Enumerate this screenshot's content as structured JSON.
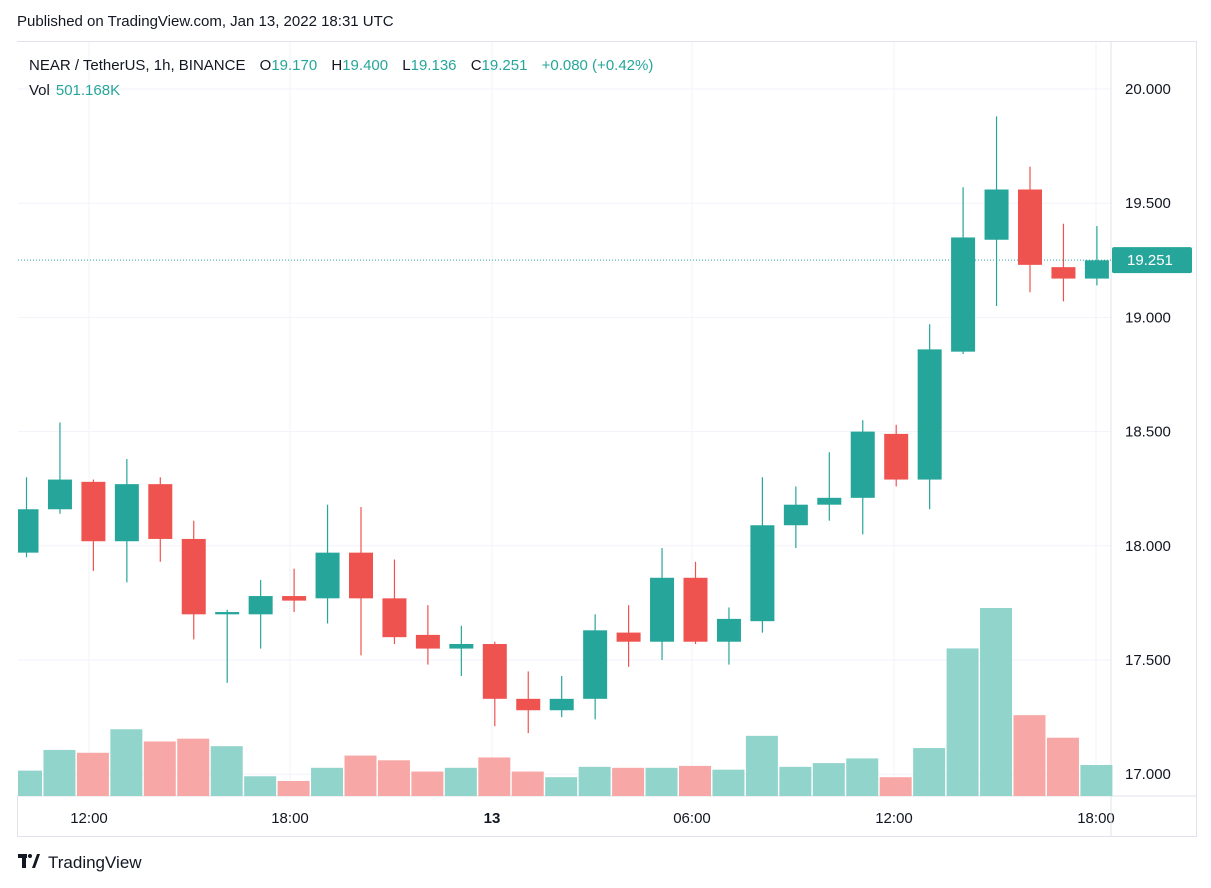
{
  "header": {
    "published": "Published on TradingView.com, Jan 13, 2022 18:31 UTC"
  },
  "legend": {
    "symbol": "NEAR / TetherUS, 1h, BINANCE",
    "open_label": "O",
    "open": "19.170",
    "high_label": "H",
    "high": "19.400",
    "low_label": "L",
    "low": "19.136",
    "close_label": "C",
    "close": "19.251",
    "change": "+0.080 (+0.42%)",
    "vol_label": "Vol",
    "vol": "501.168K"
  },
  "price_tag": "19.251",
  "footer": {
    "brand": "TradingView",
    "logo_icon": "tradingview-logo-icon"
  },
  "colors": {
    "up": "#26a69a",
    "down": "#ef5350",
    "up_vol": "#91d4cc",
    "down_vol": "#f7a8a6"
  },
  "chart_data": {
    "type": "candlestick",
    "y_axis": {
      "ticks": [
        "20.000",
        "19.500",
        "19.000",
        "18.500",
        "18.000",
        "17.500",
        "17.000"
      ],
      "range": [
        16.9,
        20.2
      ]
    },
    "x_axis": {
      "ticks": [
        "12:00",
        "18:00",
        "13",
        "06:00",
        "12:00",
        "18:00"
      ]
    },
    "last_price": 19.251,
    "candles": [
      {
        "o": 17.97,
        "h": 18.3,
        "l": 17.95,
        "c": 18.16
      },
      {
        "o": 18.16,
        "h": 18.54,
        "l": 18.14,
        "c": 18.29
      },
      {
        "o": 18.28,
        "h": 18.29,
        "l": 17.89,
        "c": 18.02
      },
      {
        "o": 18.02,
        "h": 18.38,
        "l": 17.84,
        "c": 18.27
      },
      {
        "o": 18.27,
        "h": 18.3,
        "l": 17.93,
        "c": 18.03
      },
      {
        "o": 18.03,
        "h": 18.11,
        "l": 17.59,
        "c": 17.7
      },
      {
        "o": 17.7,
        "h": 17.72,
        "l": 17.4,
        "c": 17.71
      },
      {
        "o": 17.7,
        "h": 17.85,
        "l": 17.55,
        "c": 17.78
      },
      {
        "o": 17.78,
        "h": 17.9,
        "l": 17.71,
        "c": 17.76
      },
      {
        "o": 17.77,
        "h": 18.18,
        "l": 17.66,
        "c": 17.97
      },
      {
        "o": 17.97,
        "h": 18.17,
        "l": 17.52,
        "c": 17.77
      },
      {
        "o": 17.77,
        "h": 17.94,
        "l": 17.57,
        "c": 17.6
      },
      {
        "o": 17.61,
        "h": 17.74,
        "l": 17.48,
        "c": 17.55
      },
      {
        "o": 17.55,
        "h": 17.65,
        "l": 17.43,
        "c": 17.57
      },
      {
        "o": 17.57,
        "h": 17.58,
        "l": 17.21,
        "c": 17.33
      },
      {
        "o": 17.33,
        "h": 17.45,
        "l": 17.18,
        "c": 17.28
      },
      {
        "o": 17.28,
        "h": 17.43,
        "l": 17.25,
        "c": 17.33
      },
      {
        "o": 17.33,
        "h": 17.7,
        "l": 17.24,
        "c": 17.63
      },
      {
        "o": 17.62,
        "h": 17.74,
        "l": 17.47,
        "c": 17.58
      },
      {
        "o": 17.58,
        "h": 17.99,
        "l": 17.5,
        "c": 17.86
      },
      {
        "o": 17.86,
        "h": 17.93,
        "l": 17.57,
        "c": 17.58
      },
      {
        "o": 17.58,
        "h": 17.73,
        "l": 17.48,
        "c": 17.68
      },
      {
        "o": 17.67,
        "h": 18.3,
        "l": 17.62,
        "c": 18.09
      },
      {
        "o": 18.09,
        "h": 18.26,
        "l": 17.99,
        "c": 18.18
      },
      {
        "o": 18.18,
        "h": 18.41,
        "l": 18.11,
        "c": 18.21
      },
      {
        "o": 18.21,
        "h": 18.55,
        "l": 18.05,
        "c": 18.5
      },
      {
        "o": 18.49,
        "h": 18.53,
        "l": 18.26,
        "c": 18.29
      },
      {
        "o": 18.29,
        "h": 18.97,
        "l": 18.16,
        "c": 18.86
      },
      {
        "o": 18.85,
        "h": 19.57,
        "l": 18.84,
        "c": 19.35
      },
      {
        "o": 19.34,
        "h": 19.88,
        "l": 19.05,
        "c": 19.56
      },
      {
        "o": 19.56,
        "h": 19.66,
        "l": 19.11,
        "c": 19.23
      },
      {
        "o": 19.22,
        "h": 19.41,
        "l": 19.07,
        "c": 19.17
      },
      {
        "o": 19.17,
        "h": 19.4,
        "l": 19.14,
        "c": 19.25
      }
    ],
    "volume": [
      {
        "v": 0.27,
        "up": true
      },
      {
        "v": 0.49,
        "up": true
      },
      {
        "v": 0.46,
        "up": false
      },
      {
        "v": 0.71,
        "up": true
      },
      {
        "v": 0.58,
        "up": false
      },
      {
        "v": 0.61,
        "up": false
      },
      {
        "v": 0.53,
        "up": true
      },
      {
        "v": 0.21,
        "up": true
      },
      {
        "v": 0.16,
        "up": false
      },
      {
        "v": 0.3,
        "up": true
      },
      {
        "v": 0.43,
        "up": false
      },
      {
        "v": 0.38,
        "up": false
      },
      {
        "v": 0.26,
        "up": false
      },
      {
        "v": 0.3,
        "up": true
      },
      {
        "v": 0.41,
        "up": false
      },
      {
        "v": 0.26,
        "up": false
      },
      {
        "v": 0.2,
        "up": true
      },
      {
        "v": 0.31,
        "up": true
      },
      {
        "v": 0.3,
        "up": false
      },
      {
        "v": 0.3,
        "up": true
      },
      {
        "v": 0.32,
        "up": false
      },
      {
        "v": 0.28,
        "up": true
      },
      {
        "v": 0.64,
        "up": true
      },
      {
        "v": 0.31,
        "up": true
      },
      {
        "v": 0.35,
        "up": true
      },
      {
        "v": 0.4,
        "up": true
      },
      {
        "v": 0.2,
        "up": false
      },
      {
        "v": 0.51,
        "up": true
      },
      {
        "v": 1.57,
        "up": true
      },
      {
        "v": 2.0,
        "up": true
      },
      {
        "v": 0.86,
        "up": false
      },
      {
        "v": 0.62,
        "up": false
      },
      {
        "v": 0.33,
        "up": true
      }
    ]
  }
}
